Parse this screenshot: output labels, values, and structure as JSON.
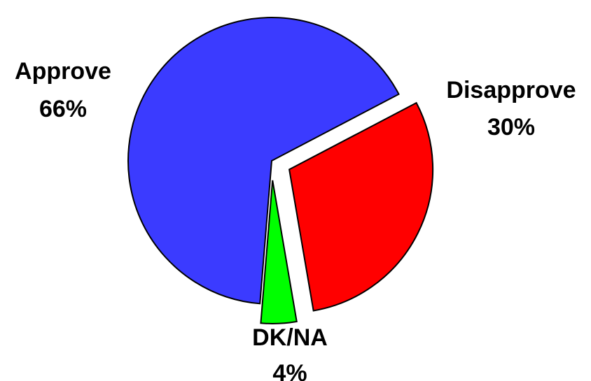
{
  "chart_data": {
    "type": "pie",
    "title": "",
    "slices": [
      {
        "label": "Approve",
        "value": 66,
        "value_label": "66%",
        "color": "#3b3bff",
        "exploded": false
      },
      {
        "label": "Disapprove",
        "value": 30,
        "value_label": "30%",
        "color": "#ff0000",
        "exploded": true
      },
      {
        "label": "DK/NA",
        "value": 4,
        "value_label": "4%",
        "color": "#00ff00",
        "exploded": true
      }
    ],
    "legend": "none"
  }
}
